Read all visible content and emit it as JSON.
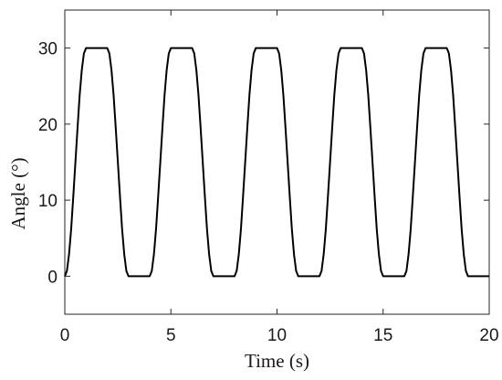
{
  "chart_data": {
    "type": "line",
    "title": "",
    "xlabel": "Time (s)",
    "ylabel": "Angle (°)",
    "xlim": [
      0,
      20
    ],
    "ylim": [
      -5,
      35
    ],
    "xticks": [
      0,
      5,
      10,
      15,
      20
    ],
    "yticks": [
      0,
      10,
      20,
      30
    ],
    "grid": false,
    "legend": "none",
    "line_color": "#000000",
    "series": [
      {
        "x": [
          0,
          0.1,
          0.2,
          0.3,
          0.4,
          0.5,
          0.6,
          0.7,
          0.8,
          0.9,
          1.0,
          2.0,
          2.1,
          2.2,
          2.3,
          2.4,
          2.5,
          2.6,
          2.7,
          2.8,
          2.9,
          3.0,
          4.0,
          4.1,
          4.2,
          4.3,
          4.4,
          4.5,
          4.6,
          4.7,
          4.8,
          4.9,
          5.0,
          6.0,
          6.1,
          6.2,
          6.3,
          6.4,
          6.5,
          6.6,
          6.7,
          6.8,
          6.9,
          7.0,
          8.0,
          8.1,
          8.2,
          8.3,
          8.4,
          8.5,
          8.6,
          8.7,
          8.8,
          8.9,
          9.0,
          10.0,
          10.1,
          10.2,
          10.3,
          10.4,
          10.5,
          10.6,
          10.7,
          10.8,
          10.9,
          11.0,
          12.0,
          12.1,
          12.2,
          12.3,
          12.4,
          12.5,
          12.6,
          12.7,
          12.8,
          12.9,
          13.0,
          14.0,
          14.1,
          14.2,
          14.3,
          14.4,
          14.5,
          14.6,
          14.7,
          14.8,
          14.9,
          15.0,
          16.0,
          16.1,
          16.2,
          16.3,
          16.4,
          16.5,
          16.6,
          16.7,
          16.8,
          16.9,
          17.0,
          18.0,
          18.1,
          18.2,
          18.3,
          18.4,
          18.5,
          18.6,
          18.7,
          18.8,
          18.9,
          19.0,
          20.0
        ],
        "y": [
          0,
          0.7,
          2.9,
          6.2,
          10.5,
          15.0,
          19.5,
          23.8,
          27.1,
          29.3,
          30,
          30,
          29.3,
          27.1,
          23.8,
          19.5,
          15.0,
          10.5,
          6.2,
          2.9,
          0.7,
          0,
          0,
          0.7,
          2.9,
          6.2,
          10.5,
          15.0,
          19.5,
          23.8,
          27.1,
          29.3,
          30,
          30,
          29.3,
          27.1,
          23.8,
          19.5,
          15.0,
          10.5,
          6.2,
          2.9,
          0.7,
          0,
          0,
          0.7,
          2.9,
          6.2,
          10.5,
          15.0,
          19.5,
          23.8,
          27.1,
          29.3,
          30,
          30,
          29.3,
          27.1,
          23.8,
          19.5,
          15.0,
          10.5,
          6.2,
          2.9,
          0.7,
          0,
          0,
          0.7,
          2.9,
          6.2,
          10.5,
          15.0,
          19.5,
          23.8,
          27.1,
          29.3,
          30,
          30,
          29.3,
          27.1,
          23.8,
          19.5,
          15.0,
          10.5,
          6.2,
          2.9,
          0.7,
          0,
          0,
          0.7,
          2.9,
          6.2,
          10.5,
          15.0,
          19.5,
          23.8,
          27.1,
          29.3,
          30,
          30,
          29.3,
          27.1,
          23.8,
          19.5,
          15.0,
          10.5,
          6.2,
          2.9,
          0.7,
          0,
          0
        ]
      }
    ]
  }
}
